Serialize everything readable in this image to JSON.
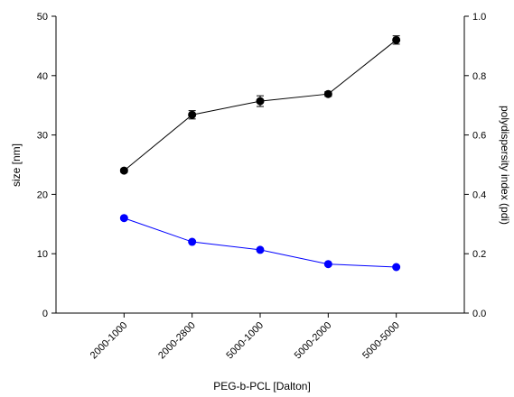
{
  "chart_data": {
    "type": "line",
    "categories": [
      "2000-1000",
      "2000-2800",
      "5000-1000",
      "5000-2000",
      "5000-5000"
    ],
    "xlabel": "PEG-b-PCL [Dalton]",
    "ylabel": "size [nm]",
    "ylabel_right": "polydispersity index (pdi)",
    "ylim": [
      0,
      50
    ],
    "ylim_right": [
      0.0,
      1.0
    ],
    "y_ticks": [
      0,
      10,
      20,
      30,
      40,
      50
    ],
    "y_tick_labels": [
      "0",
      "10",
      "20",
      "30",
      "40",
      "50"
    ],
    "y2_ticks": [
      0.0,
      0.2,
      0.4,
      0.6,
      0.8,
      1.0
    ],
    "y2_tick_labels": [
      "0.0",
      "0.2",
      "0.4",
      "0.6",
      "0.8",
      "1.0"
    ],
    "grid": false,
    "series": [
      {
        "axis": "left",
        "color": "#000000",
        "values": [
          24.0,
          33.4,
          35.7,
          36.9,
          46.0
        ],
        "errors": [
          0.3,
          0.7,
          0.9,
          0.4,
          0.7
        ]
      },
      {
        "axis": "right",
        "color": "#0000ff",
        "values": [
          0.32,
          0.24,
          0.213,
          0.165,
          0.155
        ]
      }
    ]
  },
  "colors": {
    "right_axis_title": "#0000ff"
  }
}
